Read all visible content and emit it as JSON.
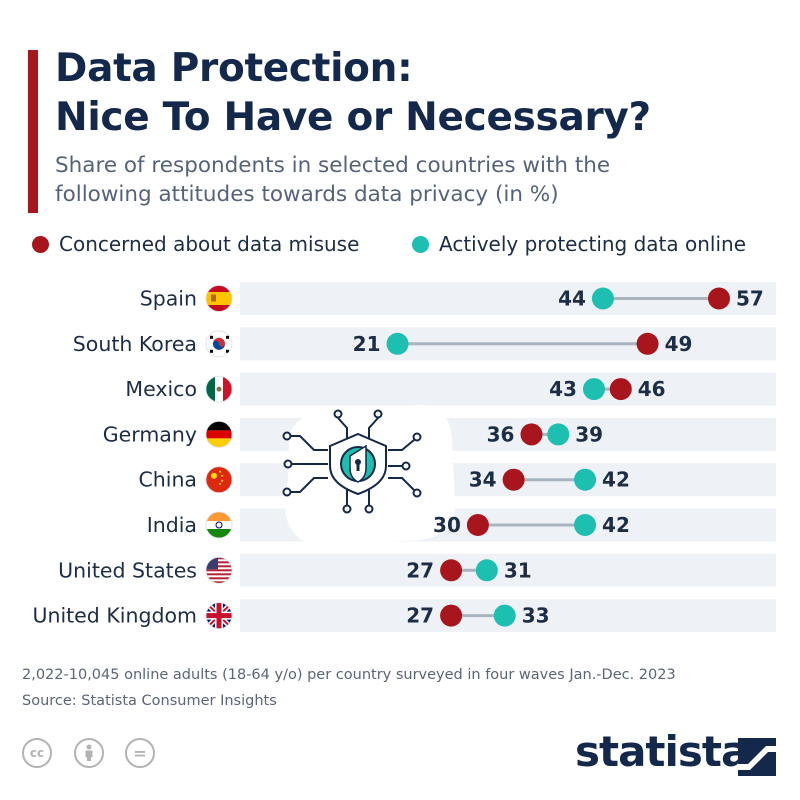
{
  "header": {
    "title_line1": "Data Protection:",
    "title_line2": "Nice To Have or Necessary?",
    "subtitle_line1": "Share of respondents in selected countries with the",
    "subtitle_line2": "following attitudes towards data privacy (in %)"
  },
  "colors": {
    "accent": "#a8151d",
    "concerned": "#a8151d",
    "protecting": "#1cbfb0",
    "connector": "#a9b4bf",
    "row_bg": "#eef1f6",
    "navy": "#13284b"
  },
  "chart_data": {
    "type": "dumbbell",
    "title": "Data Protection: Nice To Have or Necessary?",
    "unit": "%",
    "xlim": [
      0,
      100
    ],
    "legend_position": "top",
    "series": [
      {
        "name": "Concerned about data misuse",
        "color": "#a8151d",
        "values": [
          57,
          49,
          46,
          36,
          34,
          30,
          27,
          27
        ]
      },
      {
        "name": "Actively protecting data online",
        "color": "#1cbfb0",
        "values": [
          44,
          21,
          43,
          39,
          42,
          42,
          31,
          33
        ]
      }
    ],
    "categories": [
      {
        "name": "Spain",
        "flag": "spain-flag-icon"
      },
      {
        "name": "South Korea",
        "flag": "south-korea-flag-icon"
      },
      {
        "name": "Mexico",
        "flag": "mexico-flag-icon"
      },
      {
        "name": "Germany",
        "flag": "germany-flag-icon"
      },
      {
        "name": "China",
        "flag": "china-flag-icon"
      },
      {
        "name": "India",
        "flag": "india-flag-icon"
      },
      {
        "name": "United States",
        "flag": "united-states-flag-icon"
      },
      {
        "name": "United Kingdom",
        "flag": "united-kingdom-flag-icon"
      }
    ]
  },
  "illustration": {
    "icon": "shield-keyhole-network-icon"
  },
  "footer": {
    "note": "2,022-10,045 online adults (18-64 y/o) per country surveyed in four waves Jan.-Dec. 2023",
    "source": "Source: Statista Consumer Insights",
    "license_icons": [
      "cc-icon",
      "by-icon",
      "nd-icon"
    ],
    "cc_glyph": "cc",
    "nd_glyph": "=",
    "brand": "statista"
  }
}
